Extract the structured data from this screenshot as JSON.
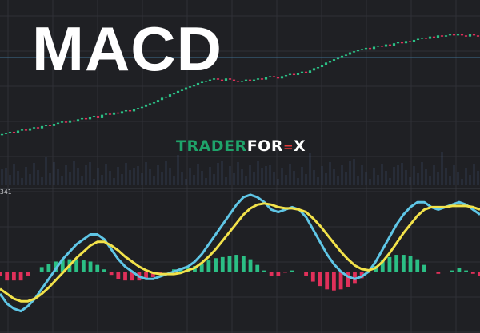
{
  "title": "MACD",
  "logo": {
    "part1": "TRADER",
    "part2": "FOR",
    "part3": "=",
    "part4": "X"
  },
  "indicator_label": "341",
  "colors": {
    "background": "#1f2024",
    "grid": "#2f3036",
    "bull": "#2bbf85",
    "bear": "#e0305a",
    "macd_line": "#5fc6e6",
    "signal_line": "#f2e24a",
    "volume": "#4a5f86",
    "price_ref_line": "#3f6f92"
  },
  "chart_data": [
    {
      "type": "candlestick",
      "title": "MACD",
      "xlabel": "",
      "ylabel": "",
      "x_range": [
        0,
        119
      ],
      "y_range": [
        0,
        100
      ],
      "close": [
        10,
        11,
        12,
        11,
        13,
        14,
        13,
        15,
        16,
        15,
        17,
        18,
        17,
        19,
        20,
        21,
        20,
        22,
        21,
        23,
        24,
        23,
        25,
        26,
        24,
        27,
        28,
        27,
        29,
        28,
        30,
        31,
        30,
        32,
        33,
        34,
        36,
        37,
        38,
        40,
        42,
        43,
        45,
        46,
        48,
        49,
        51,
        52,
        53,
        55,
        56,
        57,
        58,
        59,
        58,
        57,
        59,
        58,
        57,
        56,
        57,
        58,
        57,
        58,
        59,
        58,
        60,
        61,
        60,
        59,
        61,
        62,
        63,
        62,
        64,
        65,
        64,
        66,
        68,
        69,
        71,
        73,
        74,
        76,
        77,
        79,
        80,
        82,
        83,
        84,
        85,
        86,
        85,
        87,
        88,
        87,
        89,
        88,
        90,
        91,
        90,
        92,
        91,
        93,
        94,
        95,
        94,
        96,
        95,
        97,
        96,
        97,
        98,
        97,
        98,
        97,
        96,
        98,
        97,
        96
      ]
    },
    {
      "type": "line",
      "xlabel": "",
      "ylabel": "",
      "series": [
        {
          "name": "",
          "values": [
            -18,
            -26,
            -30,
            -32,
            -28,
            -22,
            -14,
            -6,
            2,
            10,
            16,
            22,
            26,
            30,
            30,
            26,
            18,
            10,
            4,
            0,
            -4,
            -6,
            -6,
            -4,
            -2,
            0,
            2,
            4,
            8,
            14,
            22,
            30,
            38,
            46,
            54,
            60,
            62,
            60,
            56,
            50,
            48,
            50,
            52,
            50,
            44,
            34,
            24,
            14,
            6,
            0,
            -4,
            -6,
            -4,
            0,
            8,
            18,
            28,
            38,
            46,
            52,
            56,
            56,
            52,
            50,
            52,
            54,
            56,
            54,
            50,
            46
          ],
          "style": "macd"
        },
        {
          "name": "",
          "values": [
            -14,
            -18,
            -22,
            -24,
            -24,
            -22,
            -18,
            -13,
            -7,
            -1,
            5,
            11,
            16,
            21,
            24,
            24,
            21,
            17,
            12,
            8,
            4,
            1,
            -1,
            -2,
            -2,
            -2,
            -1,
            1,
            3,
            7,
            12,
            18,
            25,
            32,
            39,
            46,
            51,
            54,
            55,
            54,
            52,
            51,
            51,
            50,
            48,
            43,
            37,
            30,
            23,
            16,
            10,
            5,
            2,
            1,
            3,
            8,
            15,
            23,
            31,
            38,
            45,
            50,
            52,
            52,
            52,
            53,
            53,
            53,
            52,
            50
          ],
          "style": "signal"
        }
      ],
      "histogram": [
        -4,
        -8,
        -8,
        -8,
        -4,
        0,
        4,
        7,
        9,
        11,
        11,
        11,
        10,
        9,
        6,
        2,
        -3,
        -7,
        -8,
        -8,
        -8,
        -7,
        -5,
        -2,
        0,
        2,
        3,
        3,
        5,
        7,
        10,
        12,
        13,
        14,
        15,
        14,
        11,
        6,
        1,
        -4,
        -4,
        -1,
        1,
        0,
        -4,
        -9,
        -13,
        -16,
        -17,
        -16,
        -14,
        -11,
        -6,
        -1,
        5,
        10,
        13,
        15,
        15,
        14,
        11,
        6,
        0,
        -2,
        0,
        1,
        3,
        1,
        -2,
        -4
      ]
    }
  ]
}
